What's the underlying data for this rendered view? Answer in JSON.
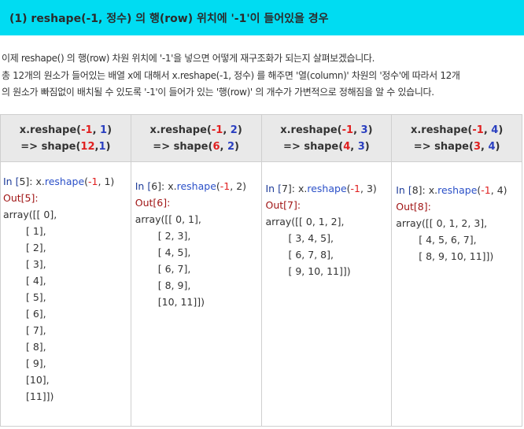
{
  "header": {
    "title": "(1) reshape(-1, 정수) 의 행(row) 위치에 '-1'이 들어있을 경우"
  },
  "intro": {
    "lines": [
      "이제 reshape() 의 행(row) 차원 위치에 '-1'을 넣으면 어떻게 재구조화가 되는지 살펴보겠습니다.",
      "총 12개의 원소가 들어있는 배열 x에 대해서 x.reshape(-1, 정수) 를 해주면 '열(column)' 차원의 '정수'에 따라서 12개",
      "의 원소가 빠짐없이 배치될 수 있도록 '-1'이 들어가 있는 '행(row)' 의 개수가 가변적으로 정해짐을 알 수 있습니다."
    ]
  },
  "table": {
    "columns": [
      {
        "heading": [
          [
            {
              "text": "x.reshape(",
              "color": "#333333"
            },
            {
              "text": "-1",
              "color": "#e02020"
            },
            {
              "text": ", ",
              "color": "#333333"
            },
            {
              "text": "1",
              "color": "#2a3fc0"
            },
            {
              "text": ")",
              "color": "#333333"
            }
          ],
          [
            {
              "text": "=> shape(",
              "color": "#333333"
            },
            {
              "text": "12",
              "color": "#e02020"
            },
            {
              "text": ",",
              "color": "#333333"
            },
            {
              "text": "1",
              "color": "#2a3fc0"
            },
            {
              "text": ")",
              "color": "#333333"
            }
          ]
        ],
        "body": [
          [
            {
              "text": "In [",
              "color": "#1f3d99"
            },
            {
              "text": "5",
              "color": "#333333"
            },
            {
              "text": "]: x.",
              "color": "#333333"
            },
            {
              "text": "reshape",
              "color": "#2b50c8"
            },
            {
              "text": "(",
              "color": "#333333"
            },
            {
              "text": "-1",
              "color": "#e02020"
            },
            {
              "text": ", 1)",
              "color": "#333333"
            }
          ],
          [
            {
              "text": "Out[",
              "color": "#a01515"
            },
            {
              "text": "5",
              "color": "#a01515"
            },
            {
              "text": "]:",
              "color": "#a01515"
            }
          ],
          "array([[ 0],",
          "[ 1],",
          "[ 2],",
          "[ 3],",
          "[ 4],",
          "[ 5],",
          "[ 6],",
          "[ 7],",
          "[ 8],",
          "[ 9],",
          "[10],",
          "[11]])"
        ]
      },
      {
        "heading": [
          [
            {
              "text": "x.reshape(",
              "color": "#333333"
            },
            {
              "text": "-1",
              "color": "#e02020"
            },
            {
              "text": ", ",
              "color": "#333333"
            },
            {
              "text": "2",
              "color": "#2a3fc0"
            },
            {
              "text": ")",
              "color": "#333333"
            }
          ],
          [
            {
              "text": "=> shape(",
              "color": "#333333"
            },
            {
              "text": "6",
              "color": "#e02020"
            },
            {
              "text": ", ",
              "color": "#333333"
            },
            {
              "text": "2",
              "color": "#2a3fc0"
            },
            {
              "text": ")",
              "color": "#333333"
            }
          ]
        ],
        "body": [
          [
            {
              "text": "In [",
              "color": "#1f3d99"
            },
            {
              "text": "6",
              "color": "#333333"
            },
            {
              "text": "]: x.",
              "color": "#333333"
            },
            {
              "text": "reshape",
              "color": "#2b50c8"
            },
            {
              "text": "(",
              "color": "#333333"
            },
            {
              "text": "-1",
              "color": "#e02020"
            },
            {
              "text": ", 2)",
              "color": "#333333"
            }
          ],
          [
            {
              "text": "Out[",
              "color": "#a01515"
            },
            {
              "text": "6",
              "color": "#a01515"
            },
            {
              "text": "]:",
              "color": "#a01515"
            }
          ],
          "array([[ 0, 1],",
          "[ 2, 3],",
          "[ 4, 5],",
          "[ 6, 7],",
          "[ 8, 9],",
          "[10, 11]])"
        ]
      },
      {
        "heading": [
          [
            {
              "text": "x.reshape(",
              "color": "#333333"
            },
            {
              "text": "-1",
              "color": "#e02020"
            },
            {
              "text": ", ",
              "color": "#333333"
            },
            {
              "text": "3",
              "color": "#2a3fc0"
            },
            {
              "text": ")",
              "color": "#333333"
            }
          ],
          [
            {
              "text": "=> shape(",
              "color": "#333333"
            },
            {
              "text": "4",
              "color": "#e02020"
            },
            {
              "text": ", ",
              "color": "#333333"
            },
            {
              "text": "3",
              "color": "#2a3fc0"
            },
            {
              "text": ")",
              "color": "#333333"
            }
          ]
        ],
        "body": [
          [
            {
              "text": "In [",
              "color": "#1f3d99"
            },
            {
              "text": "7",
              "color": "#333333"
            },
            {
              "text": "]: x.",
              "color": "#333333"
            },
            {
              "text": "reshape",
              "color": "#2b50c8"
            },
            {
              "text": "(",
              "color": "#333333"
            },
            {
              "text": "-1",
              "color": "#e02020"
            },
            {
              "text": ", 3)",
              "color": "#333333"
            }
          ],
          [
            {
              "text": "Out[",
              "color": "#a01515"
            },
            {
              "text": "7",
              "color": "#a01515"
            },
            {
              "text": "]:",
              "color": "#a01515"
            }
          ],
          "array([[ 0, 1, 2],",
          "[ 3, 4, 5],",
          "[ 6, 7, 8],",
          "[ 9, 10, 11]])"
        ]
      },
      {
        "heading": [
          [
            {
              "text": "x.reshape(",
              "color": "#333333"
            },
            {
              "text": "-1",
              "color": "#e02020"
            },
            {
              "text": ", ",
              "color": "#333333"
            },
            {
              "text": "4",
              "color": "#2a3fc0"
            },
            {
              "text": ")",
              "color": "#333333"
            }
          ],
          [
            {
              "text": "=> shape(",
              "color": "#333333"
            },
            {
              "text": "3",
              "color": "#e02020"
            },
            {
              "text": ", ",
              "color": "#333333"
            },
            {
              "text": "4",
              "color": "#2a3fc0"
            },
            {
              "text": ")",
              "color": "#333333"
            }
          ]
        ],
        "body": [
          [
            {
              "text": "In [",
              "color": "#1f3d99"
            },
            {
              "text": "8",
              "color": "#333333"
            },
            {
              "text": "]: x.",
              "color": "#333333"
            },
            {
              "text": "reshape",
              "color": "#2b50c8"
            },
            {
              "text": "(",
              "color": "#333333"
            },
            {
              "text": "-1",
              "color": "#e02020"
            },
            {
              "text": ", 4)",
              "color": "#333333"
            }
          ],
          [
            {
              "text": "Out[",
              "color": "#a01515"
            },
            {
              "text": "8",
              "color": "#a01515"
            },
            {
              "text": "]:",
              "color": "#a01515"
            }
          ],
          "array([[ 0, 1, 2, 3],",
          "[ 4, 5, 6, 7],",
          "[ 8, 9, 10, 11]])"
        ]
      }
    ]
  }
}
